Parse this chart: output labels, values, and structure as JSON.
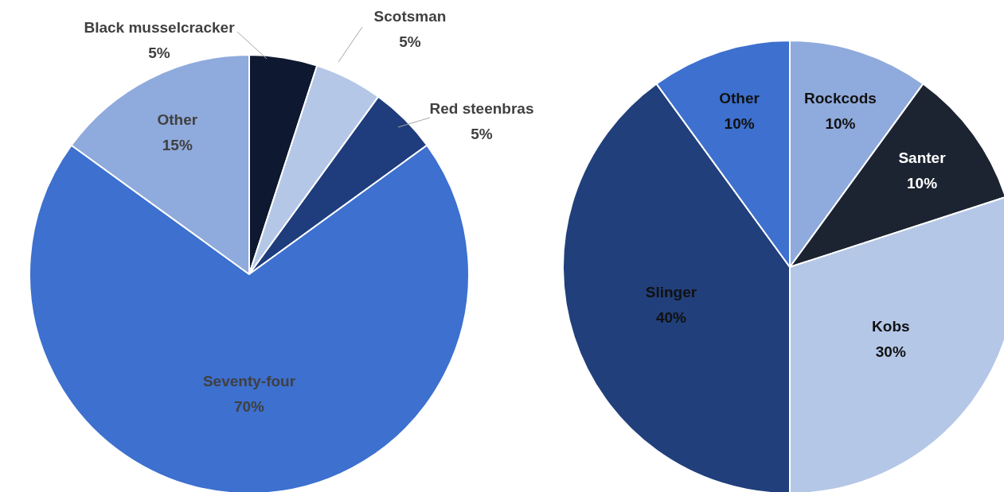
{
  "chart_data": [
    {
      "type": "pie",
      "categories": [
        "Black musselcracker",
        "Scotsman",
        "Red steenbras",
        "Seventy-four",
        "Other"
      ],
      "values": [
        5,
        5,
        5,
        70,
        15
      ],
      "colors": [
        "#0e1830",
        "#b4c7e7",
        "#1f3d7c",
        "#3d70cf",
        "#8faadc"
      ],
      "value_labels": [
        "5%",
        "5%",
        "5%",
        "70%",
        "15%"
      ]
    },
    {
      "type": "pie",
      "categories": [
        "Rockcods",
        "Santer",
        "Kobs",
        "Slinger",
        "Other"
      ],
      "values": [
        10,
        10,
        30,
        40,
        10
      ],
      "colors": [
        "#8faadc",
        "#1c2331",
        "#b4c7e7",
        "#213f7b",
        "#3d70cf"
      ],
      "value_labels": [
        "10%",
        "10%",
        "30%",
        "40%",
        "10%"
      ]
    }
  ]
}
